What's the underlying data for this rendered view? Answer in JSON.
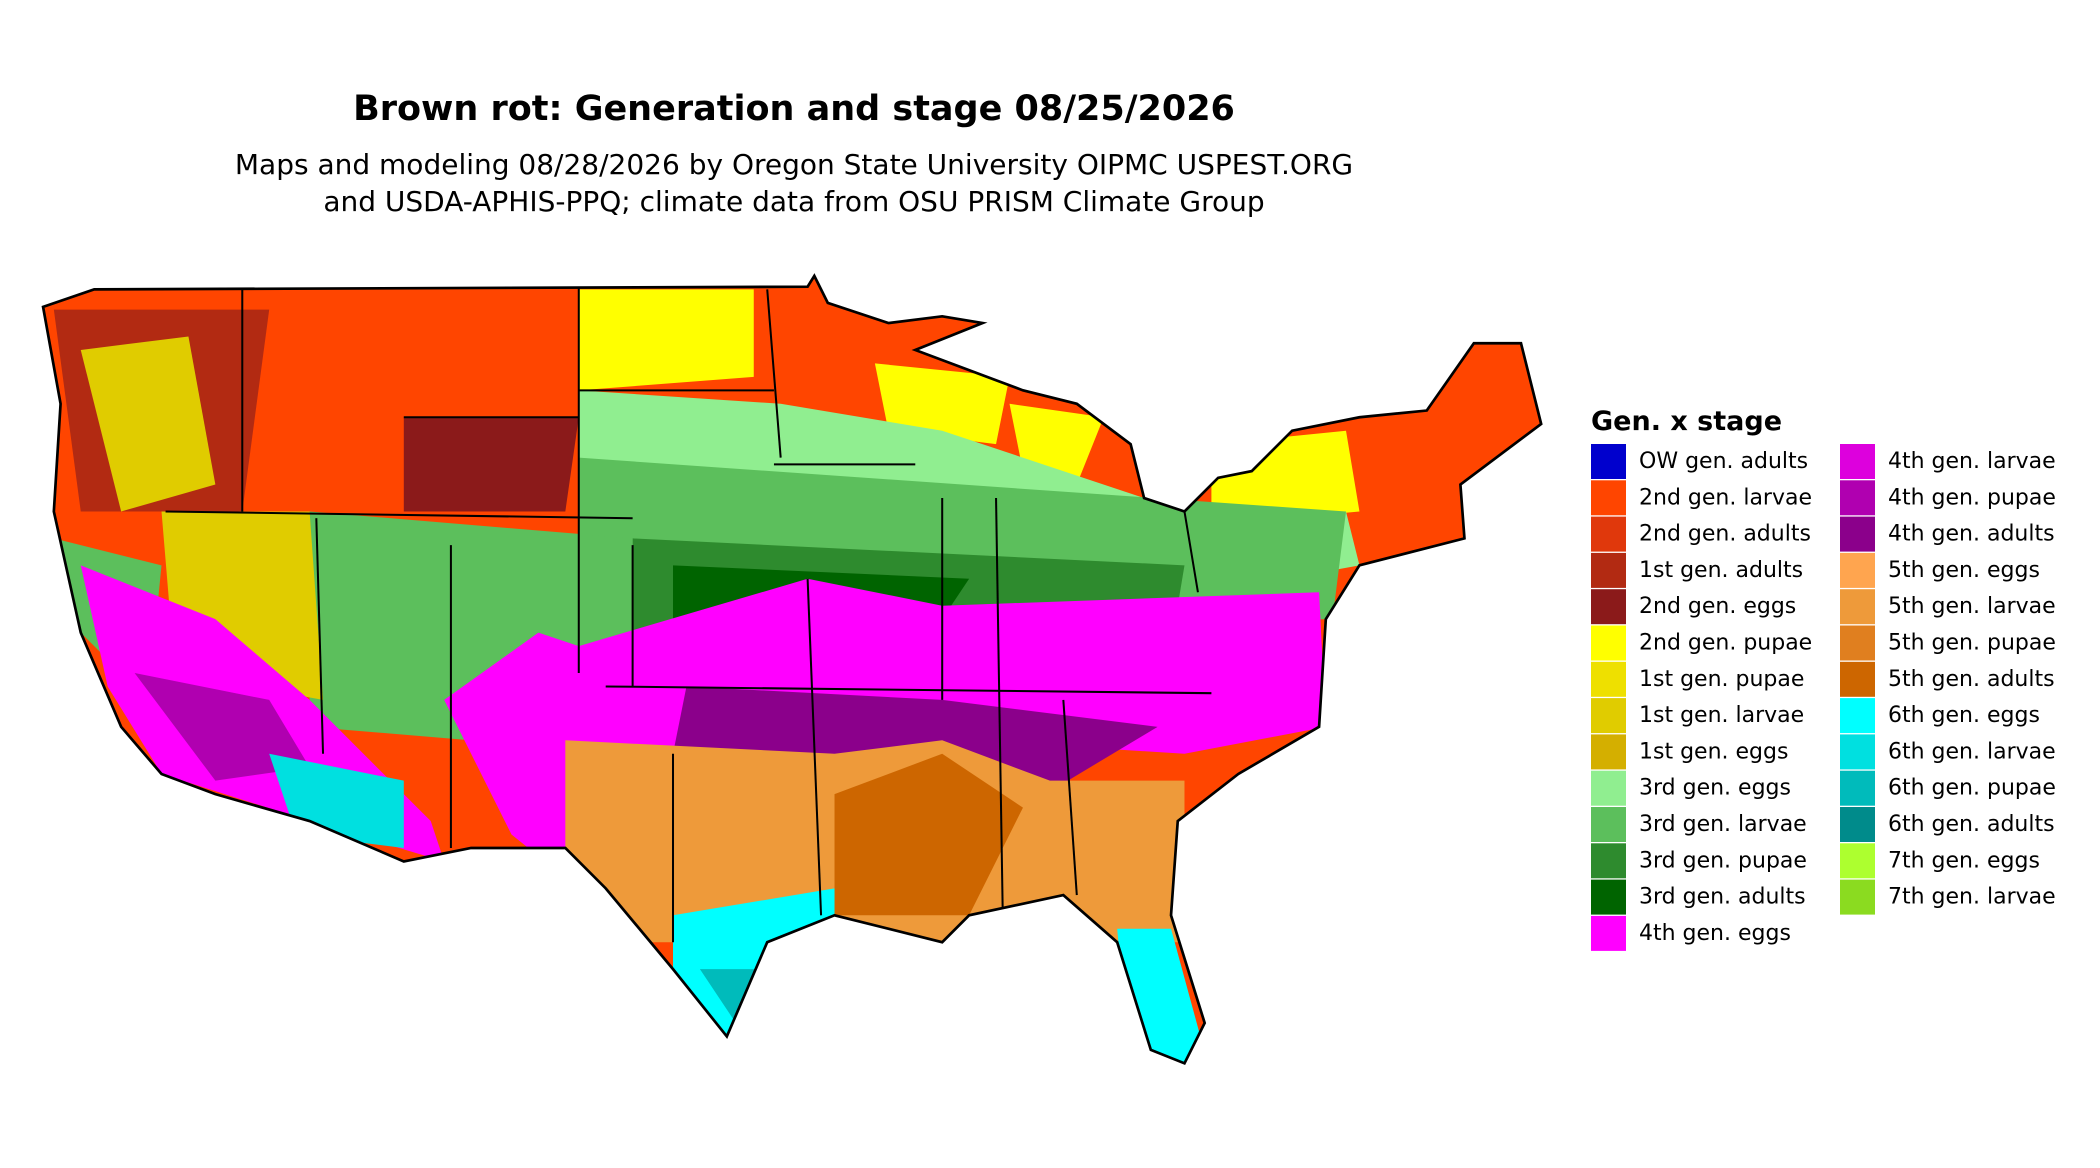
{
  "header": {
    "title": "Brown rot: Generation and stage 08/25/2026",
    "subtitle": [
      "Maps and modeling 08/28/2026 by Oregon State University OIPMC USPEST.ORG",
      "and USDA-APHIS-PPQ; climate data from OSU PRISM Climate Group"
    ]
  },
  "legend": {
    "title": "Gen. x stage",
    "items": [
      {
        "label": "OW gen. adults",
        "color": "#0000cd"
      },
      {
        "label": "2nd gen. larvae",
        "color": "#ff4500"
      },
      {
        "label": "2nd gen. adults",
        "color": "#e0380c"
      },
      {
        "label": "1st gen. adults",
        "color": "#b22a12"
      },
      {
        "label": "2nd gen. eggs",
        "color": "#8b1a1a"
      },
      {
        "label": "2nd gen. pupae",
        "color": "#ffff00"
      },
      {
        "label": "1st gen. pupae",
        "color": "#eee000"
      },
      {
        "label": "1st gen. larvae",
        "color": "#e0cc00"
      },
      {
        "label": "1st gen. eggs",
        "color": "#d4af00"
      },
      {
        "label": "3rd gen. eggs",
        "color": "#90ee90"
      },
      {
        "label": "3rd gen. larvae",
        "color": "#5cbf5c"
      },
      {
        "label": "3rd gen. pupae",
        "color": "#2e8b2e"
      },
      {
        "label": "3rd gen. adults",
        "color": "#006400"
      },
      {
        "label": "4th gen. eggs",
        "color": "#ff00ff"
      },
      {
        "label": "4th gen. larvae",
        "color": "#dd00dd"
      },
      {
        "label": "4th gen. pupae",
        "color": "#b000b0"
      },
      {
        "label": "4th gen. adults",
        "color": "#8b008b"
      },
      {
        "label": "5th gen. eggs",
        "color": "#ffa54f"
      },
      {
        "label": "5th gen. larvae",
        "color": "#ee9a3a"
      },
      {
        "label": "5th gen. pupae",
        "color": "#e07f1f"
      },
      {
        "label": "5th gen. adults",
        "color": "#cd6600"
      },
      {
        "label": "6th gen. eggs",
        "color": "#00ffff"
      },
      {
        "label": "6th gen. larvae",
        "color": "#00e0e0"
      },
      {
        "label": "6th gen. pupae",
        "color": "#00bbbb"
      },
      {
        "label": "6th gen. adults",
        "color": "#008b8b"
      },
      {
        "label": "7th gen. eggs",
        "color": "#adff2f"
      },
      {
        "label": "7th gen. larvae",
        "color": "#8bdb20"
      }
    ]
  }
}
